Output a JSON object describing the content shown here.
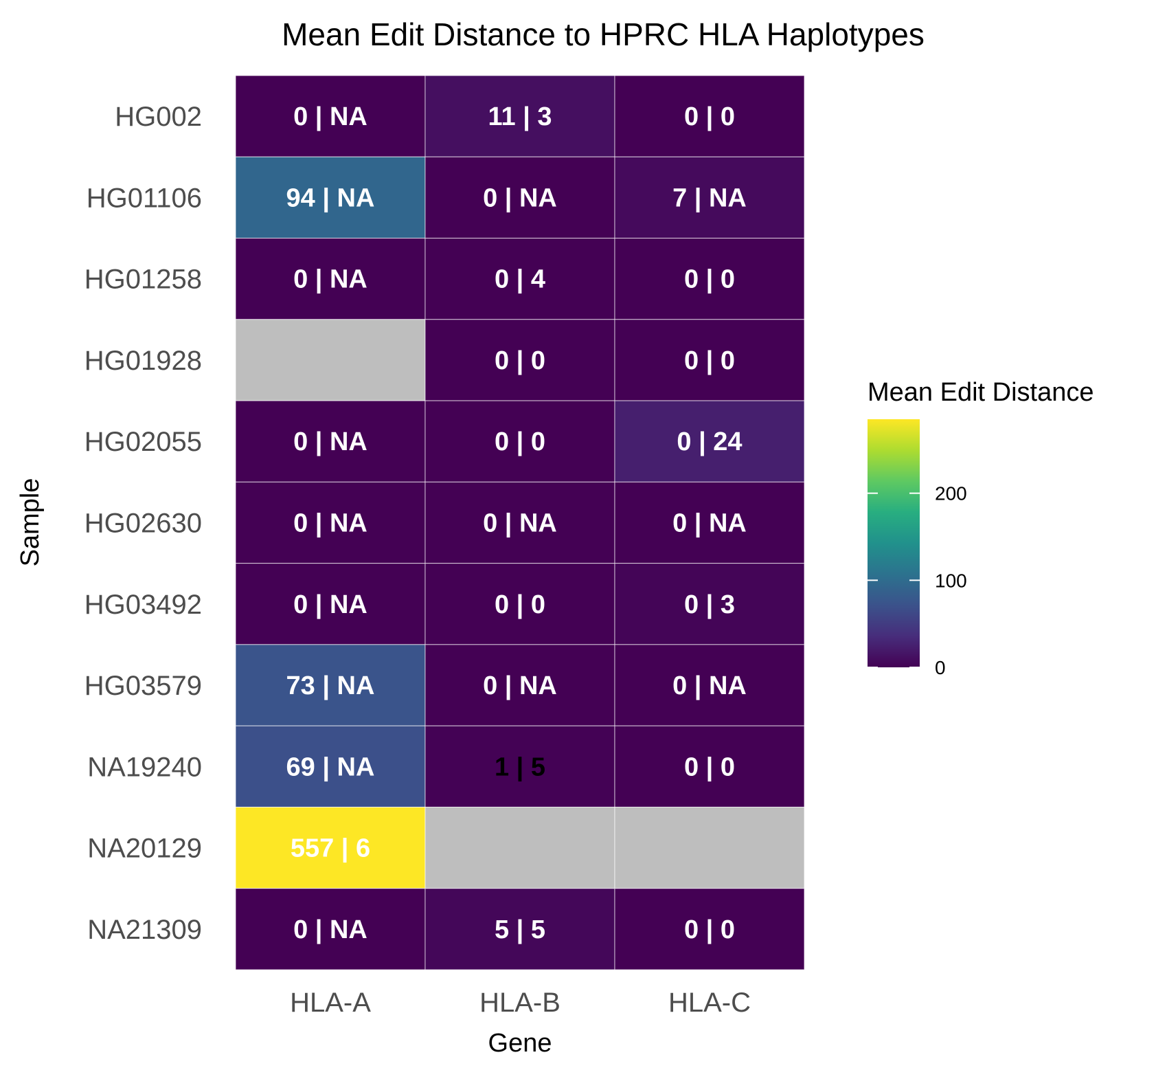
{
  "chart_data": {
    "type": "heatmap",
    "title": "Mean Edit Distance to HPRC HLA Haplotypes",
    "xlabel": "Gene",
    "ylabel": "Sample",
    "x_categories": [
      "HLA-A",
      "HLA-B",
      "HLA-C"
    ],
    "y_categories": [
      "HG002",
      "HG01106",
      "HG01258",
      "HG01928",
      "HG02055",
      "HG02630",
      "HG03492",
      "HG03579",
      "NA19240",
      "NA20129",
      "NA21309"
    ],
    "cells": [
      [
        "0 | NA",
        "11 | 3",
        "0 | 0"
      ],
      [
        "94 | NA",
        "0 | NA",
        "7 | NA"
      ],
      [
        "0 | NA",
        "0 | 4",
        "0 | 0"
      ],
      [
        null,
        "0 | 0",
        "0 | 0"
      ],
      [
        "0 | NA",
        "0 | 0",
        "0 | 24"
      ],
      [
        "0 | NA",
        "0 | NA",
        "0 | NA"
      ],
      [
        "0 | NA",
        "0 | 0",
        "0 | 3"
      ],
      [
        "73 | NA",
        "0 | NA",
        "0 | NA"
      ],
      [
        "69 | NA",
        "1 | 5",
        "0 | 0"
      ],
      [
        "557 | 6",
        null,
        null
      ],
      [
        "0 | NA",
        "5 | 5",
        "0 | 0"
      ]
    ],
    "fill_values": [
      [
        0,
        11,
        0
      ],
      [
        94,
        0,
        7
      ],
      [
        0,
        0,
        0
      ],
      [
        null,
        0,
        0
      ],
      [
        0,
        0,
        24
      ],
      [
        0,
        0,
        0
      ],
      [
        0,
        0,
        3
      ],
      [
        73,
        0,
        0
      ],
      [
        69,
        1,
        0
      ],
      [
        557,
        null,
        null
      ],
      [
        0,
        5,
        0
      ]
    ],
    "label_colors": [
      [
        "#ffffff",
        "#ffffff",
        "#ffffff"
      ],
      [
        "#ffffff",
        "#ffffff",
        "#ffffff"
      ],
      [
        "#ffffff",
        "#ffffff",
        "#ffffff"
      ],
      [
        "#ffffff",
        "#ffffff",
        "#ffffff"
      ],
      [
        "#ffffff",
        "#ffffff",
        "#ffffff"
      ],
      [
        "#ffffff",
        "#ffffff",
        "#ffffff"
      ],
      [
        "#ffffff",
        "#ffffff",
        "#ffffff"
      ],
      [
        "#ffffff",
        "#ffffff",
        "#ffffff"
      ],
      [
        "#ffffff",
        "#000000",
        "#ffffff"
      ],
      [
        "#ffffff",
        "#ffffff",
        "#ffffff"
      ],
      [
        "#ffffff",
        "#ffffff",
        "#ffffff"
      ]
    ],
    "na_color": "#bebebe",
    "colorscale": "viridis",
    "color_limits": [
      0,
      285
    ],
    "legend": {
      "title": "Mean Edit Distance",
      "ticks": [
        0,
        100,
        200
      ],
      "placement": "right"
    }
  }
}
